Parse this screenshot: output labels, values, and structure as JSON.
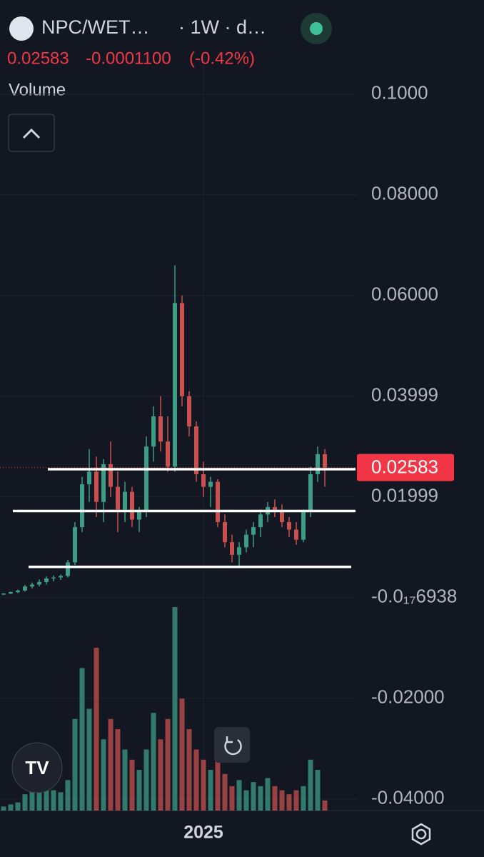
{
  "header": {
    "symbol": "NPC/WET…",
    "interval": "· 1W · d…",
    "price": "0.02583",
    "change": "-0.0001100",
    "change_pct": "(-0.42%)",
    "indicator": "Volume"
  },
  "chart_data": {
    "type": "candlestick",
    "ylim": [
      -0.0423,
      0.1045
    ],
    "yticks": [
      {
        "value": 0.1,
        "label": "0.1000"
      },
      {
        "value": 0.08,
        "label": "0.08000"
      },
      {
        "value": 0.06,
        "label": "0.06000"
      },
      {
        "value": 0.04,
        "label": "0.03999"
      },
      {
        "value": 0.02,
        "label": "0.01999"
      },
      {
        "value": 0,
        "label": "-0.0₁₇6938"
      },
      {
        "value": -0.02,
        "label": "-0.02000"
      },
      {
        "value": -0.04,
        "label": "-0.04000"
      }
    ],
    "xticks": [
      {
        "value": 28,
        "label": "2025"
      }
    ],
    "last_price": 0.02583,
    "up_color": "#3e9c85",
    "down_color": "#c8504f",
    "horizontal_lines": [
      0.0255,
      0.0172,
      0.0061
    ],
    "volume_lim": [
      0,
      100
    ],
    "open": [
      0.0006,
      0.0008,
      0.0011,
      0.0014,
      0.0022,
      0.0026,
      0.0031,
      0.0038,
      0.004,
      0.0043,
      0.007,
      0.014,
      0.0225,
      0.025,
      0.019,
      0.0265,
      0.022,
      0.0175,
      0.021,
      0.0155,
      0.017,
      0.03,
      0.036,
      0.031,
      0.026,
      0.0585,
      0.04,
      0.034,
      0.0245,
      0.022,
      0.023,
      0.015,
      0.011,
      0.0085,
      0.01,
      0.0125,
      0.014,
      0.0165,
      0.018,
      0.017,
      0.015,
      0.0135,
      0.0115,
      0.017,
      0.0245,
      0.0285
    ],
    "high": [
      0.0009,
      0.0012,
      0.0016,
      0.0025,
      0.003,
      0.0036,
      0.0042,
      0.0044,
      0.0046,
      0.0075,
      0.015,
      0.024,
      0.0295,
      0.028,
      0.0275,
      0.031,
      0.025,
      0.023,
      0.022,
      0.018,
      0.032,
      0.038,
      0.04,
      0.036,
      0.066,
      0.06,
      0.041,
      0.035,
      0.027,
      0.024,
      0.0235,
      0.0165,
      0.0125,
      0.011,
      0.0135,
      0.015,
      0.0175,
      0.019,
      0.0195,
      0.0185,
      0.016,
      0.015,
      0.0175,
      0.026,
      0.03,
      0.0295
    ],
    "low": [
      0.0005,
      0.0007,
      0.0009,
      0.0012,
      0.0018,
      0.0022,
      0.0026,
      0.0032,
      0.0035,
      0.004,
      0.0065,
      0.013,
      0.019,
      0.016,
      0.015,
      0.02,
      0.013,
      0.015,
      0.014,
      0.013,
      0.016,
      0.027,
      0.029,
      0.025,
      0.025,
      0.038,
      0.032,
      0.023,
      0.02,
      0.018,
      0.014,
      0.01,
      0.007,
      0.006,
      0.009,
      0.01,
      0.012,
      0.015,
      0.016,
      0.014,
      0.012,
      0.0105,
      0.011,
      0.016,
      0.023,
      0.022
    ],
    "close": [
      0.0008,
      0.0011,
      0.0014,
      0.0022,
      0.0026,
      0.0031,
      0.0038,
      0.004,
      0.0043,
      0.007,
      0.014,
      0.0225,
      0.025,
      0.019,
      0.0265,
      0.022,
      0.0175,
      0.021,
      0.0155,
      0.017,
      0.03,
      0.036,
      0.031,
      0.026,
      0.0585,
      0.04,
      0.034,
      0.0245,
      0.022,
      0.023,
      0.015,
      0.011,
      0.0085,
      0.01,
      0.0125,
      0.014,
      0.0165,
      0.018,
      0.017,
      0.015,
      0.0135,
      0.0115,
      0.017,
      0.0245,
      0.0285,
      0.02583
    ],
    "volume": [
      2,
      3,
      4,
      8,
      10,
      12,
      14,
      10,
      9,
      15,
      45,
      70,
      50,
      80,
      35,
      45,
      40,
      30,
      25,
      20,
      30,
      48,
      35,
      45,
      100,
      55,
      40,
      30,
      25,
      20,
      25,
      18,
      12,
      15,
      10,
      14,
      12,
      16,
      12,
      10,
      8,
      10,
      12,
      25,
      20,
      5
    ]
  }
}
